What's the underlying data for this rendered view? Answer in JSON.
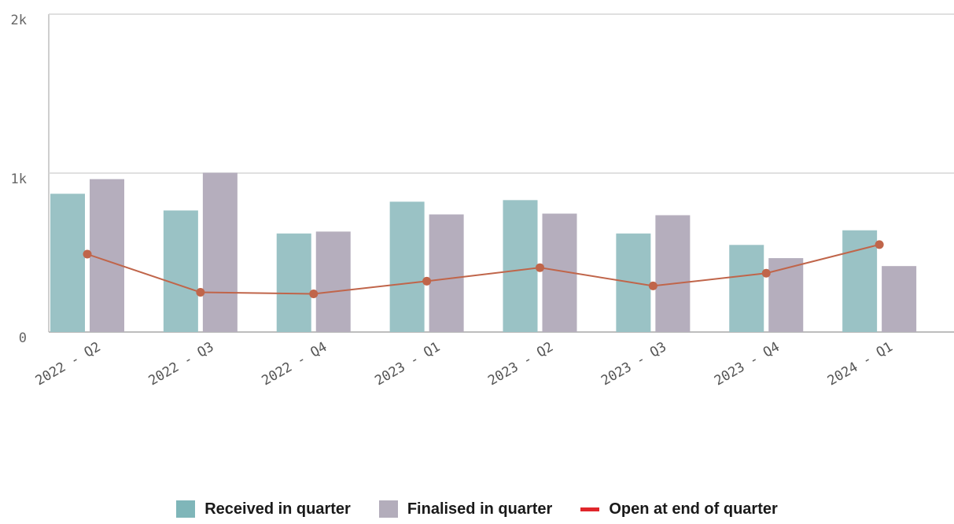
{
  "chart_data": {
    "type": "bar",
    "categories": [
      "2022 - Q2",
      "2022 - Q3",
      "2022 - Q4",
      "2023 - Q1",
      "2023 - Q2",
      "2023 - Q3",
      "2023 - Q4",
      "2024 - Q1"
    ],
    "series": [
      {
        "name": "Received in quarter",
        "type": "bar",
        "color": "#9ac2c5",
        "values": [
          870,
          765,
          620,
          820,
          830,
          620,
          548,
          640
        ]
      },
      {
        "name": "Finalised in quarter",
        "type": "bar",
        "color": "#b5aebd",
        "values": [
          962,
          1002,
          632,
          740,
          745,
          735,
          465,
          415
        ]
      },
      {
        "name": "Open at end of quarter",
        "type": "line",
        "color": "#c0654a",
        "values": [
          490,
          250,
          240,
          320,
          405,
          290,
          370,
          550
        ]
      }
    ],
    "yticks": [
      {
        "value": 0,
        "label": "0"
      },
      {
        "value": 1000,
        "label": "1k"
      },
      {
        "value": 2000,
        "label": "2k"
      }
    ],
    "ylim": [
      0,
      2000
    ],
    "grid": true,
    "legend": {
      "position": "bottom-center",
      "line_swatch_color": "#e0262b",
      "items": [
        "Received in quarter",
        "Finalised in quarter",
        "Open at end of quarter"
      ]
    }
  }
}
